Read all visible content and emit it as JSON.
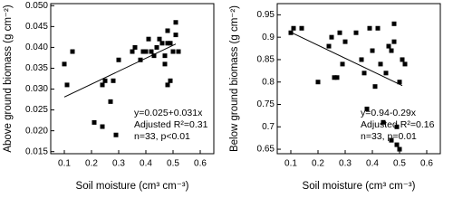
{
  "chart_data": [
    {
      "type": "scatter",
      "y_label": "Above ground biomass (g cm⁻²)",
      "x_label": "Soil moisture (cm³ cm⁻³)",
      "annotations": [
        "y=0.025+0.031x",
        "Adjusted R²=0.31",
        "n=33, p<0.01"
      ],
      "xlim": [
        0.05,
        0.65
      ],
      "xticks": [
        0.1,
        0.2,
        0.3,
        0.4,
        0.5,
        0.6
      ],
      "ylim": [
        0.0145,
        0.0505
      ],
      "yticks": [
        {
          "value": 0.015,
          "label": "0.015"
        },
        {
          "value": 0.02,
          "label": "0.020"
        },
        {
          "value": 0.025,
          "label": "0.025"
        },
        {
          "value": 0.03,
          "label": "0.030"
        },
        {
          "value": 0.035,
          "label": "0.035"
        },
        {
          "value": 0.04,
          "label": "0.040"
        },
        {
          "value": 0.045,
          "label": "0.045"
        },
        {
          "value": 0.05,
          "label": "0.050"
        }
      ],
      "color": "#000000",
      "x": [
        0.1,
        0.11,
        0.13,
        0.21,
        0.24,
        0.25,
        0.24,
        0.27,
        0.28,
        0.29,
        0.3,
        0.35,
        0.36,
        0.38,
        0.39,
        0.4,
        0.41,
        0.42,
        0.43,
        0.44,
        0.45,
        0.46,
        0.47,
        0.48,
        0.48,
        0.49,
        0.49,
        0.48,
        0.5,
        0.51,
        0.51,
        0.52,
        0.47
      ],
      "values": [
        0.036,
        0.031,
        0.039,
        0.022,
        0.031,
        0.032,
        0.021,
        0.027,
        0.032,
        0.019,
        0.037,
        0.039,
        0.04,
        0.037,
        0.039,
        0.039,
        0.042,
        0.039,
        0.038,
        0.04,
        0.042,
        0.041,
        0.038,
        0.041,
        0.044,
        0.041,
        0.032,
        0.031,
        0.039,
        0.046,
        0.043,
        0.039,
        0.036
      ],
      "fit_line": {
        "x": [
          0.1,
          0.51
        ],
        "y": [
          0.0281,
          0.0408
        ]
      }
    },
    {
      "type": "scatter",
      "y_label": "Below ground biomass (g cm⁻²)",
      "x_label": "Soil moisture (cm³ cm⁻³)",
      "annotations": [
        "y=0.94-0.29x",
        "Adjusted R²=0.16",
        "n=33, p=0.01"
      ],
      "xlim": [
        0.05,
        0.65
      ],
      "xticks": [
        0.1,
        0.2,
        0.3,
        0.4,
        0.5,
        0.6
      ],
      "ylim": [
        0.64,
        0.975
      ],
      "yticks": [
        0.65,
        0.7,
        0.75,
        0.8,
        0.85,
        0.9,
        0.95
      ],
      "color": "#000000",
      "x": [
        0.1,
        0.11,
        0.14,
        0.2,
        0.24,
        0.25,
        0.26,
        0.27,
        0.28,
        0.29,
        0.3,
        0.34,
        0.36,
        0.37,
        0.38,
        0.39,
        0.4,
        0.41,
        0.42,
        0.43,
        0.44,
        0.45,
        0.46,
        0.47,
        0.48,
        0.48,
        0.49,
        0.49,
        0.5,
        0.5,
        0.51,
        0.52,
        0.47
      ],
      "values": [
        0.91,
        0.92,
        0.92,
        0.8,
        0.88,
        0.9,
        0.81,
        0.81,
        0.91,
        0.84,
        0.89,
        0.91,
        0.85,
        0.82,
        0.74,
        0.92,
        0.87,
        0.79,
        0.92,
        0.84,
        0.71,
        0.82,
        0.88,
        0.87,
        0.93,
        0.89,
        0.7,
        0.66,
        0.65,
        0.8,
        0.85,
        0.84,
        0.67
      ],
      "fit_line": {
        "x": [
          0.1,
          0.51
        ],
        "y": [
          0.911,
          0.792
        ]
      }
    }
  ]
}
